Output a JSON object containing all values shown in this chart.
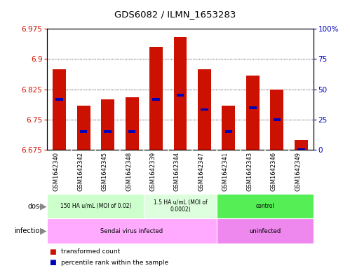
{
  "title": "GDS6082 / ILMN_1653283",
  "samples": [
    "GSM1642340",
    "GSM1642342",
    "GSM1642345",
    "GSM1642348",
    "GSM1642339",
    "GSM1642344",
    "GSM1642347",
    "GSM1642341",
    "GSM1642343",
    "GSM1642346",
    "GSM1642349"
  ],
  "bar_values": [
    6.875,
    6.785,
    6.8,
    6.805,
    6.93,
    6.955,
    6.875,
    6.785,
    6.86,
    6.825,
    6.7
  ],
  "blue_marker_values": [
    6.8,
    6.72,
    6.72,
    6.72,
    6.8,
    6.81,
    6.775,
    6.72,
    6.78,
    6.75,
    6.675
  ],
  "y_min": 6.675,
  "y_max": 6.975,
  "y_ticks": [
    6.675,
    6.75,
    6.825,
    6.9,
    6.975
  ],
  "y_tick_labels": [
    "6.675",
    "6.75",
    "6.825",
    "6.9",
    "6.975"
  ],
  "right_y_ticks": [
    0,
    25,
    50,
    75,
    100
  ],
  "right_y_tick_labels": [
    "0",
    "25",
    "50",
    "75",
    "100%"
  ],
  "bar_color": "#cc1100",
  "blue_color": "#0000bb",
  "dose_groups": [
    {
      "label": "150 HA u/mL (MOI of 0.02)",
      "start": 0,
      "end": 4,
      "color": "#ccffcc"
    },
    {
      "label": "1.5 HA u/mL (MOI of\n0.0002)",
      "start": 4,
      "end": 7,
      "color": "#ddffdd"
    },
    {
      "label": "control",
      "start": 7,
      "end": 11,
      "color": "#55ee55"
    }
  ],
  "infection_groups": [
    {
      "label": "Sendai virus infected",
      "start": 0,
      "end": 7,
      "color": "#ffaaff"
    },
    {
      "label": "uninfected",
      "start": 7,
      "end": 11,
      "color": "#ee88ee"
    }
  ],
  "legend_red_label": "transformed count",
  "legend_blue_label": "percentile rank within the sample",
  "background_color": "#ffffff",
  "label_color_red": "#cc1100",
  "label_color_blue": "#0000bb",
  "sample_bg_color": "#d0d0d0",
  "sample_divider_color": "#ffffff"
}
